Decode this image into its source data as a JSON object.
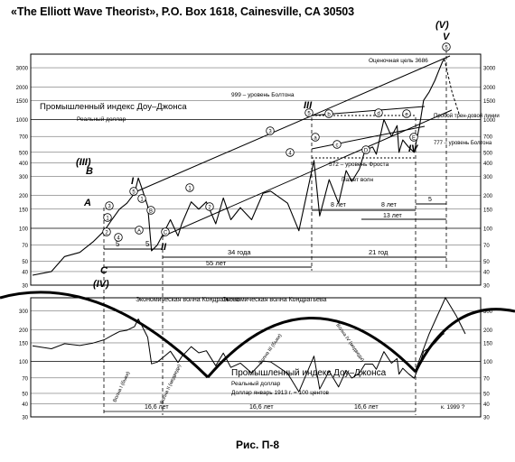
{
  "header": {
    "title": "«The Elliott Wave Theorist», P.O. Box 1618, Cainesville, CA 30503"
  },
  "caption": "Рис. П-8",
  "chart_data": [
    {
      "type": "line",
      "title": "Промышленный индекс Доу–Джонса",
      "subtitle": "Реальный доллар",
      "scale": "log",
      "yticks": [
        30,
        40,
        50,
        70,
        100,
        150,
        200,
        300,
        400,
        500,
        700,
        1000,
        1500,
        2000,
        3000
      ],
      "ylim": [
        30,
        4000
      ],
      "xlim": [
        1780,
        2000
      ],
      "series": [
        {
          "points": [
            [
              1780,
              37
            ],
            [
              1790,
              40
            ],
            [
              1797,
              55
            ],
            [
              1805,
              60
            ],
            [
              1812,
              75
            ],
            [
              1818,
              95
            ],
            [
              1822,
              120
            ],
            [
              1826,
              150
            ],
            [
              1830,
              170
            ],
            [
              1834,
              210
            ],
            [
              1836,
              290
            ],
            [
              1838,
              230
            ],
            [
              1841,
              160
            ],
            [
              1843,
              62
            ],
            [
              1846,
              70
            ],
            [
              1850,
              95
            ],
            [
              1853,
              120
            ],
            [
              1857,
              85
            ],
            [
              1859,
              110
            ],
            [
              1864,
              175
            ],
            [
              1868,
              150
            ],
            [
              1872,
              175
            ],
            [
              1877,
              110
            ],
            [
              1881,
              190
            ],
            [
              1885,
              120
            ],
            [
              1890,
              155
            ],
            [
              1896,
              120
            ],
            [
              1902,
              210
            ],
            [
              1906,
              220
            ],
            [
              1915,
              170
            ],
            [
              1921,
              95
            ],
            [
              1929,
              420
            ],
            [
              1932,
              130
            ],
            [
              1937,
              280
            ],
            [
              1942,
              170
            ],
            [
              1946,
              340
            ],
            [
              1949,
              270
            ],
            [
              1953,
              350
            ],
            [
              1956,
              520
            ],
            [
              1960,
              560
            ],
            [
              1962,
              480
            ],
            [
              1966,
              1000
            ],
            [
              1970,
              700
            ],
            [
              1973,
              880
            ],
            [
              1974,
              500
            ],
            [
              1976,
              650
            ],
            [
              1979,
              560
            ],
            [
              1982,
              500
            ],
            [
              1985,
              900
            ],
            [
              1987,
              1500
            ],
            [
              1990,
              1800
            ],
            [
              1993,
              2300
            ],
            [
              1995,
              2800
            ],
            [
              1997,
              3400
            ],
            [
              1998,
              3600
            ]
          ]
        }
      ],
      "projection": [
        [
          1998,
          3600
        ],
        [
          2002,
          1800
        ],
        [
          2006,
          1100
        ]
      ],
      "annotations": {
        "waves": [
          "(III)",
          "B",
          "A",
          "C",
          "(IV)",
          "I",
          "II",
          "III",
          "IV",
          "V",
          "(V)"
        ],
        "circled": [
          "1",
          "2",
          "3",
          "4",
          "5",
          "a",
          "b",
          "c",
          "d",
          "e",
          "A",
          "B",
          "C",
          "D",
          "E"
        ],
        "target": "Оценочная цель 3686",
        "bolton999": "999 – уровень Болтона",
        "frost572": "572 – уровень Фроста",
        "bolton777": "777 – уровень Болтона",
        "trendline_break": "Пробой трен-довой линии",
        "pagit": "Пажет волн",
        "durations": [
          "5",
          "5",
          "34 года",
          "55 лет",
          "21 год",
          "8 лет",
          "8 лет",
          "13 лет",
          "5"
        ],
        "bottom_years": "16,6 лет"
      }
    },
    {
      "type": "line",
      "title": "Промышленный индекс Доу–Джонса",
      "subtitle": "Реальный доллар",
      "note": "Доллар январь 1913 г. = 100 центов",
      "scale": "log",
      "yticks": [
        30,
        40,
        50,
        70,
        100,
        150,
        200,
        300
      ],
      "ylim": [
        30,
        400
      ],
      "kondratieff_label": "Экономическая волна Кондратьева",
      "kondratieff_waves": [
        "Волна I (быки)",
        "Волна II (медведи)",
        "Волна III (быки)",
        "Волна IV (медведи)"
      ],
      "cycle_length": "16,6 лет",
      "end_label": "к. 1999 ?"
    }
  ]
}
